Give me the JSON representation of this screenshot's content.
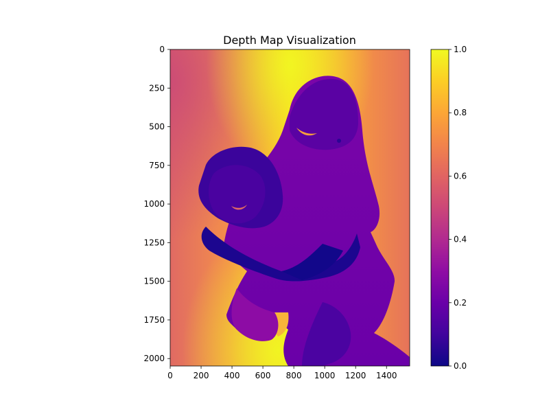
{
  "chart_data": {
    "type": "heatmap",
    "title": "Depth Map Visualization",
    "xlabel": "",
    "ylabel": "",
    "image_width": 1550,
    "image_height": 2048,
    "xlim": [
      0,
      1550
    ],
    "ylim": [
      2048,
      0
    ],
    "x_ticks": [
      0,
      200,
      400,
      600,
      800,
      1000,
      1200,
      1400
    ],
    "y_ticks": [
      0,
      250,
      500,
      750,
      1000,
      1250,
      1500,
      1750,
      2000
    ],
    "colormap": "plasma",
    "colorbar": {
      "range": [
        0.0,
        1.0
      ],
      "ticks": [
        "0.0",
        "0.2",
        "0.4",
        "0.6",
        "0.8",
        "1.0"
      ],
      "tick_values": [
        0.0,
        0.2,
        0.4,
        0.6,
        0.8,
        1.0
      ]
    },
    "colors": {
      "plasma_0": "#0d0887",
      "plasma_25": "#7e03a8",
      "plasma_50": "#cc4778",
      "plasma_75": "#f89540",
      "plasma_100": "#f0f921"
    },
    "grid": false
  }
}
